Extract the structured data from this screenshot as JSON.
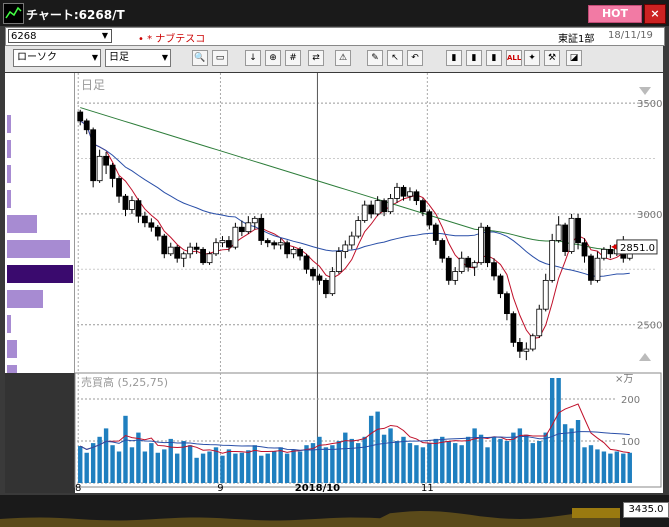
{
  "window": {
    "title": "チャート:6268/T",
    "hot_label": "HOT",
    "close_label": "×"
  },
  "info": {
    "code": "6268",
    "company": "ナブテスコ",
    "market": "東証1部",
    "date": "18/11/19"
  },
  "toolbar": {
    "chart_type": "ローソク",
    "period": "日足",
    "buttons": [
      "search-icon",
      "window-icon",
      "download-icon",
      "zoom-icon",
      "grid-icon",
      "compare-icon",
      "alert-icon",
      "pen-icon",
      "cursor-icon",
      "undo-icon",
      "candle-icon",
      "candle-icon",
      "candle-icon",
      "all-icon",
      "settings-icon",
      "wrench-icon",
      "palette-icon"
    ],
    "all_label": "ALL"
  },
  "chart_data": {
    "type": "candlestick",
    "period_label": "日足",
    "ylim": [
      2300,
      3600
    ],
    "yticks": [
      2500,
      3000,
      3500
    ],
    "ytick_labels": [
      "2500",
      "3000",
      "3500"
    ],
    "last_price_label": "2851.0",
    "last_price": 2851,
    "xtick_labels": [
      "8",
      "9",
      "2018/10",
      "11"
    ],
    "volume_title": "売買高 (5,25,75)",
    "volume_unit": "×万",
    "volume_ylim": [
      0,
      250
    ],
    "volume_yticks": [
      100,
      200
    ],
    "candles": [
      [
        3460,
        3470,
        3400,
        3420
      ],
      [
        3420,
        3430,
        3360,
        3380
      ],
      [
        3380,
        3390,
        3120,
        3150
      ],
      [
        3150,
        3290,
        3140,
        3260
      ],
      [
        3260,
        3280,
        3180,
        3220
      ],
      [
        3220,
        3230,
        3120,
        3160
      ],
      [
        3160,
        3170,
        3050,
        3080
      ],
      [
        3080,
        3090,
        2990,
        3020
      ],
      [
        3020,
        3080,
        3000,
        3060
      ],
      [
        3060,
        3070,
        2960,
        2990
      ],
      [
        2990,
        3010,
        2940,
        2960
      ],
      [
        2960,
        2980,
        2920,
        2940
      ],
      [
        2940,
        2950,
        2880,
        2900
      ],
      [
        2900,
        2910,
        2800,
        2820
      ],
      [
        2820,
        2870,
        2810,
        2850
      ],
      [
        2850,
        2860,
        2780,
        2800
      ],
      [
        2800,
        2830,
        2760,
        2820
      ],
      [
        2820,
        2870,
        2800,
        2850
      ],
      [
        2850,
        2870,
        2820,
        2840
      ],
      [
        2840,
        2850,
        2770,
        2780
      ],
      [
        2780,
        2830,
        2770,
        2820
      ],
      [
        2820,
        2890,
        2810,
        2870
      ],
      [
        2870,
        2900,
        2850,
        2880
      ],
      [
        2880,
        2900,
        2830,
        2850
      ],
      [
        2850,
        2960,
        2840,
        2940
      ],
      [
        2940,
        2970,
        2900,
        2920
      ],
      [
        2920,
        2990,
        2910,
        2960
      ],
      [
        2960,
        2990,
        2930,
        2980
      ],
      [
        2980,
        3000,
        2860,
        2880
      ],
      [
        2880,
        2890,
        2850,
        2870
      ],
      [
        2870,
        2880,
        2840,
        2860
      ],
      [
        2860,
        2890,
        2840,
        2870
      ],
      [
        2870,
        2880,
        2800,
        2820
      ],
      [
        2820,
        2850,
        2800,
        2840
      ],
      [
        2840,
        2850,
        2790,
        2810
      ],
      [
        2810,
        2820,
        2730,
        2750
      ],
      [
        2750,
        2760,
        2700,
        2720
      ],
      [
        2720,
        2730,
        2680,
        2700
      ],
      [
        2700,
        2710,
        2620,
        2640
      ],
      [
        2640,
        2760,
        2630,
        2740
      ],
      [
        2740,
        2850,
        2730,
        2830
      ],
      [
        2830,
        2880,
        2800,
        2860
      ],
      [
        2860,
        2920,
        2840,
        2900
      ],
      [
        2900,
        2990,
        2890,
        2970
      ],
      [
        2970,
        3060,
        2960,
        3040
      ],
      [
        3040,
        3060,
        2980,
        3000
      ],
      [
        3000,
        3080,
        2990,
        3060
      ],
      [
        3060,
        3070,
        2990,
        3010
      ],
      [
        3010,
        3090,
        3000,
        3070
      ],
      [
        3070,
        3140,
        3050,
        3120
      ],
      [
        3120,
        3130,
        3060,
        3080
      ],
      [
        3080,
        3120,
        3060,
        3100
      ],
      [
        3100,
        3110,
        3040,
        3060
      ],
      [
        3060,
        3070,
        2990,
        3010
      ],
      [
        3010,
        3020,
        2930,
        2950
      ],
      [
        2950,
        2960,
        2860,
        2880
      ],
      [
        2880,
        2890,
        2780,
        2800
      ],
      [
        2800,
        2810,
        2680,
        2700
      ],
      [
        2700,
        2760,
        2680,
        2740
      ],
      [
        2740,
        2830,
        2730,
        2800
      ],
      [
        2800,
        2810,
        2740,
        2760
      ],
      [
        2760,
        2790,
        2720,
        2780
      ],
      [
        2780,
        2960,
        2770,
        2940
      ],
      [
        2940,
        2950,
        2760,
        2780
      ],
      [
        2780,
        2800,
        2700,
        2720
      ],
      [
        2720,
        2730,
        2620,
        2640
      ],
      [
        2640,
        2650,
        2520,
        2550
      ],
      [
        2550,
        2560,
        2400,
        2420
      ],
      [
        2420,
        2440,
        2350,
        2380
      ],
      [
        2380,
        2420,
        2340,
        2390
      ],
      [
        2390,
        2460,
        2380,
        2450
      ],
      [
        2450,
        2590,
        2440,
        2570
      ],
      [
        2570,
        2730,
        2560,
        2700
      ],
      [
        2700,
        2910,
        2690,
        2880
      ],
      [
        2880,
        2990,
        2870,
        2950
      ],
      [
        2950,
        2960,
        2810,
        2830
      ],
      [
        2830,
        3000,
        2820,
        2980
      ],
      [
        2980,
        3000,
        2840,
        2870
      ],
      [
        2870,
        2890,
        2780,
        2810
      ],
      [
        2810,
        2820,
        2680,
        2700
      ],
      [
        2700,
        2830,
        2690,
        2800
      ],
      [
        2800,
        2850,
        2790,
        2840
      ],
      [
        2840,
        2860,
        2800,
        2820
      ],
      [
        2820,
        2880,
        2810,
        2860
      ],
      [
        2860,
        2900,
        2780,
        2800
      ],
      [
        2800,
        2880,
        2790,
        2851
      ]
    ],
    "volume": [
      88,
      72,
      95,
      110,
      130,
      90,
      75,
      160,
      85,
      120,
      75,
      95,
      72,
      80,
      105,
      70,
      100,
      90,
      60,
      70,
      75,
      85,
      65,
      80,
      70,
      72,
      78,
      90,
      65,
      70,
      75,
      85,
      70,
      80,
      75,
      90,
      95,
      110,
      85,
      90,
      100,
      120,
      105,
      95,
      110,
      160,
      170,
      115,
      130,
      100,
      110,
      95,
      90,
      85,
      95,
      105,
      110,
      100,
      95,
      90,
      110,
      130,
      115,
      85,
      110,
      105,
      100,
      120,
      130,
      115,
      95,
      100,
      120,
      260,
      260,
      140,
      130,
      150,
      85,
      90,
      80,
      75,
      70,
      75,
      70,
      72
    ],
    "ma_price": [
      {
        "name": "5",
        "color": "#c0102a"
      },
      {
        "name": "25",
        "color": "#2a4fa8"
      },
      {
        "name": "75",
        "color": "#2d7d3a"
      }
    ]
  },
  "sidebar": {
    "bars": [
      0.05,
      0.05,
      0.05,
      0.05,
      0.45,
      0.95,
      1.0,
      0.55,
      0.05,
      0.15,
      0.15
    ]
  },
  "bottom": {
    "value_label": "3435.0"
  }
}
